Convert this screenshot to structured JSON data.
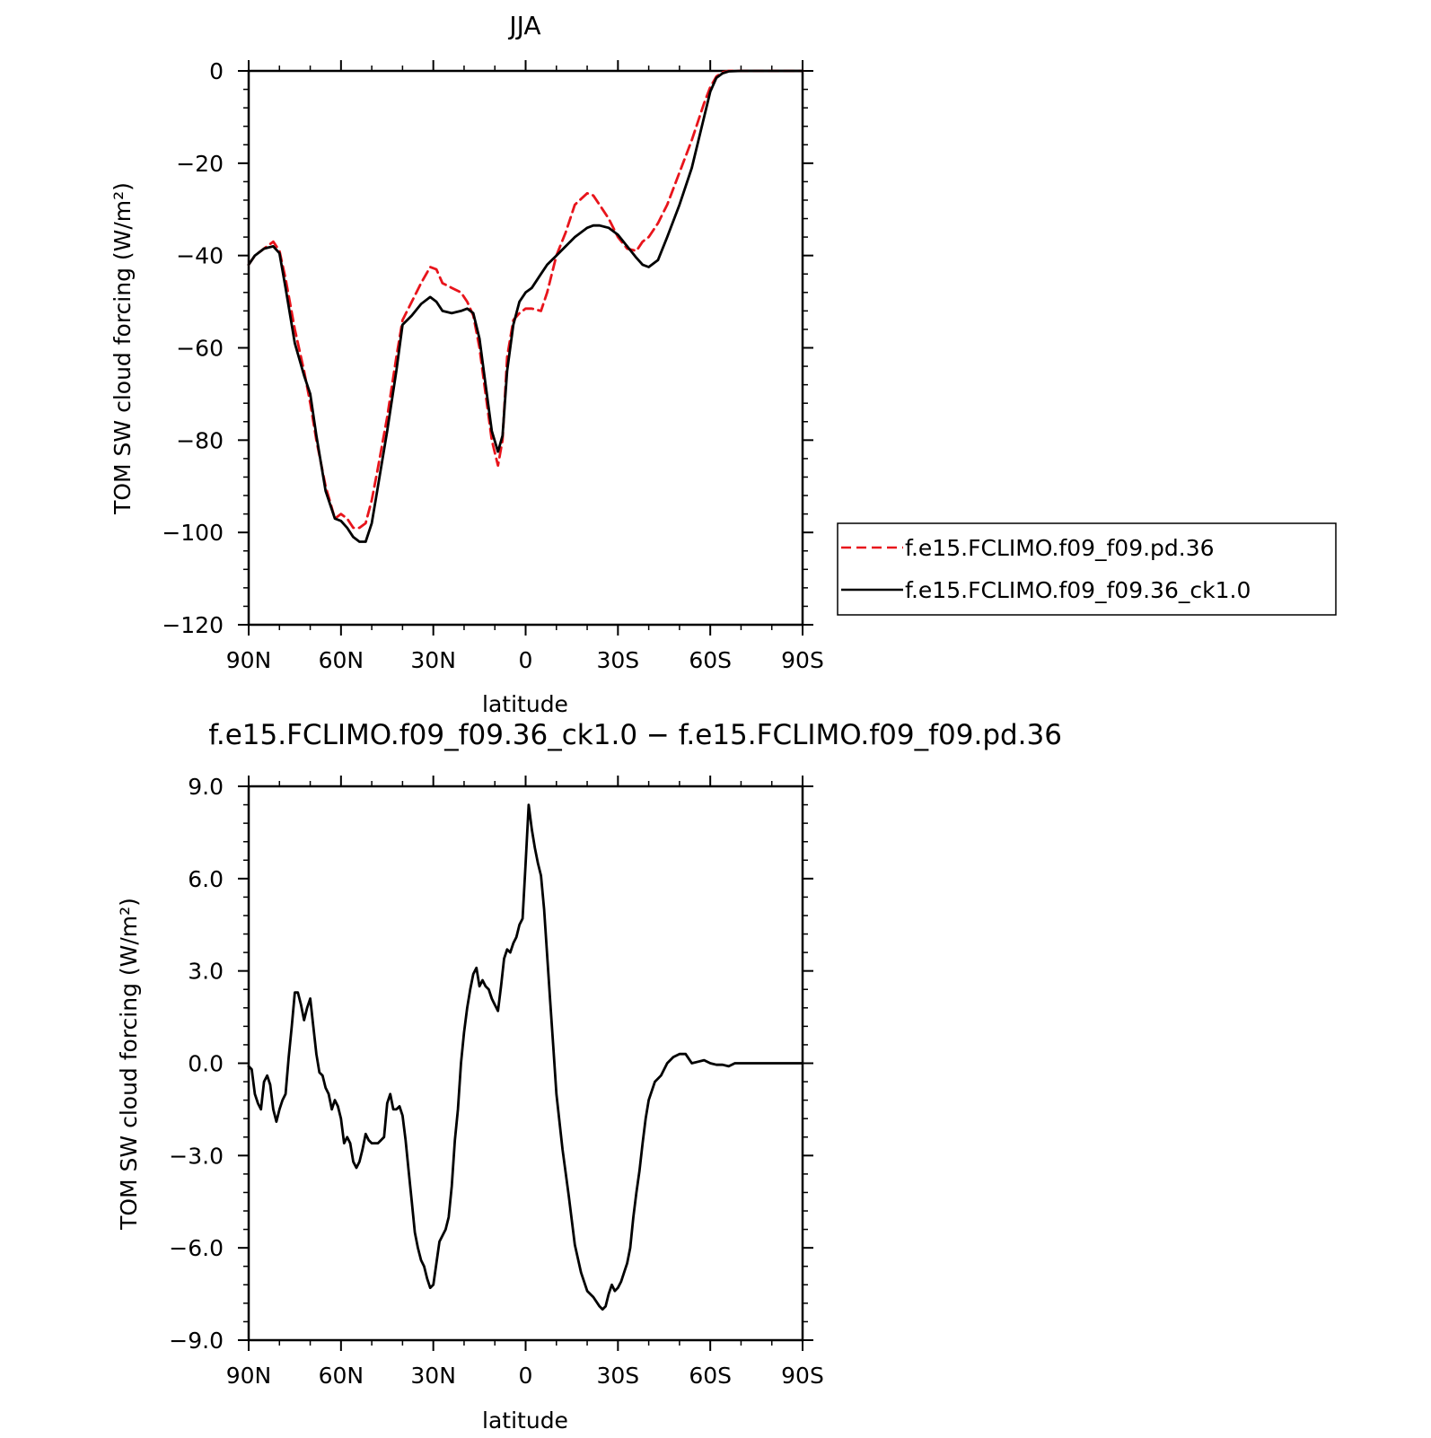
{
  "chart_data": [
    {
      "type": "line",
      "title": "JJA",
      "xlabel": "latitude",
      "ylabel": "TOM SW cloud forcing (W/m²)",
      "ylim": [
        -120,
        0
      ],
      "xlim": [
        90,
        -90
      ],
      "x_ticks": [
        90,
        60,
        30,
        0,
        -30,
        -60,
        -90
      ],
      "x_tick_labels": [
        "90N",
        "60N",
        "30N",
        "0",
        "30S",
        "60S",
        "90S"
      ],
      "y_ticks": [
        0,
        -20,
        -40,
        -60,
        -80,
        -100,
        -120
      ],
      "y_tick_labels": [
        "0",
        "−20",
        "−40",
        "−60",
        "−80",
        "−100",
        "−120"
      ],
      "legend_position": "right",
      "series": [
        {
          "name": "f.e15.FCLIMO.f09_f09.pd.36",
          "color": "#e8141b",
          "dash": "dashed",
          "x": [
            90,
            88,
            85,
            82,
            80,
            78,
            75,
            72,
            70,
            68,
            65,
            62,
            60,
            58,
            56,
            54,
            52,
            50,
            48,
            45,
            42,
            40,
            37,
            34,
            31,
            29,
            27,
            24,
            21,
            19,
            17,
            15,
            13,
            11,
            9,
            7.5,
            6,
            4,
            2,
            0,
            -2,
            -5,
            -7,
            -10,
            -13,
            -16,
            -20,
            -22,
            -24,
            -27,
            -30,
            -33,
            -36,
            -38,
            -40,
            -43,
            -46,
            -50,
            -54,
            -58,
            -60,
            -62,
            -64,
            -66,
            -70,
            -75,
            -80,
            -90
          ],
          "y": [
            -42,
            -40,
            -38.5,
            -37,
            -39,
            -45,
            -56,
            -65,
            -72,
            -80,
            -90,
            -97,
            -96,
            -97,
            -99,
            -99,
            -98,
            -93,
            -86,
            -75,
            -62,
            -54,
            -50,
            -46,
            -42.5,
            -43,
            -46,
            -47,
            -48,
            -50,
            -53,
            -60,
            -70,
            -80,
            -85.5,
            -80,
            -62,
            -54,
            -52.5,
            -51.5,
            -51.5,
            -52,
            -48,
            -40,
            -35,
            -29,
            -26.5,
            -27,
            -29,
            -32,
            -36,
            -38.5,
            -39,
            -37,
            -36,
            -33,
            -29,
            -22,
            -15,
            -7,
            -3.5,
            -1.2,
            -0.3,
            0,
            0,
            0,
            0,
            0
          ]
        },
        {
          "name": "f.e15.FCLIMO.f09_f09.36_ck1.0",
          "color": "#000000",
          "dash": "solid",
          "x": [
            90,
            88,
            85,
            82,
            80,
            78,
            75,
            72,
            70,
            68,
            65,
            62,
            60,
            58,
            56,
            54,
            52,
            50,
            48,
            45,
            42,
            40,
            37,
            34,
            31,
            29,
            27,
            24,
            21,
            19,
            17,
            15,
            13,
            11,
            9,
            7.5,
            6,
            4,
            2,
            0,
            -2,
            -5,
            -7,
            -10,
            -13,
            -16,
            -20,
            -22,
            -24,
            -27,
            -30,
            -33,
            -36,
            -38,
            -40,
            -43,
            -46,
            -50,
            -54,
            -58,
            -60,
            -62,
            -64,
            -66,
            -70,
            -75,
            -80,
            -90
          ],
          "y": [
            -42,
            -40,
            -38.5,
            -38,
            -39.5,
            -47,
            -59,
            -66,
            -70,
            -79,
            -91,
            -97,
            -97.5,
            -99,
            -101,
            -102,
            -102,
            -98,
            -90,
            -78,
            -65,
            -55,
            -53,
            -50.5,
            -49,
            -50,
            -52,
            -52.5,
            -52,
            -51.5,
            -52.5,
            -58,
            -68,
            -78,
            -82.5,
            -79,
            -65,
            -55,
            -50,
            -48,
            -47,
            -44,
            -42,
            -40,
            -38,
            -36,
            -34,
            -33.5,
            -33.5,
            -34,
            -35.5,
            -38,
            -40.5,
            -42,
            -42.5,
            -41,
            -36,
            -29,
            -21,
            -10,
            -4.5,
            -1.5,
            -0.5,
            -0.1,
            0,
            0,
            0,
            0
          ]
        }
      ]
    },
    {
      "type": "line",
      "title": "f.e15.FCLIMO.f09_f09.36_ck1.0 − f.e15.FCLIMO.f09_f09.pd.36",
      "xlabel": "latitude",
      "ylabel": "TOM SW cloud forcing (W/m²)",
      "ylim": [
        -9,
        9
      ],
      "xlim": [
        90,
        -90
      ],
      "x_ticks": [
        90,
        60,
        30,
        0,
        -30,
        -60,
        -90
      ],
      "x_tick_labels": [
        "90N",
        "60N",
        "30N",
        "0",
        "30S",
        "60S",
        "90S"
      ],
      "y_ticks": [
        9,
        6,
        3,
        0,
        -3,
        -6,
        -9
      ],
      "y_tick_labels": [
        "9.0",
        "6.0",
        "3.0",
        "0.0",
        "−3.0",
        "−6.0",
        "−9.0"
      ],
      "series": [
        {
          "color": "#000000",
          "dash": "solid",
          "x": [
            90,
            89,
            88,
            87,
            86,
            85,
            84,
            83,
            82,
            81,
            80,
            79,
            78,
            77,
            76,
            75,
            74,
            73,
            72,
            71,
            70,
            69,
            68,
            67,
            66,
            65,
            64,
            63,
            62,
            61,
            60,
            59,
            58,
            57,
            56,
            55,
            54,
            53,
            52,
            51,
            50,
            49,
            48,
            47,
            46,
            45,
            44,
            43,
            42,
            41,
            40,
            39,
            38,
            37,
            36,
            35,
            34,
            33,
            32,
            31,
            30,
            29,
            28,
            27,
            26,
            25,
            24,
            23,
            22,
            21,
            20,
            19,
            18,
            17,
            16,
            15,
            14,
            13,
            12,
            11,
            10,
            9,
            8,
            7,
            6,
            5,
            4,
            3,
            2,
            1,
            0,
            -1,
            -2,
            -3,
            -4,
            -5,
            -6,
            -7,
            -8,
            -9,
            -10,
            -12,
            -14,
            -16,
            -18,
            -20,
            -22,
            -24,
            -25,
            -26,
            -27,
            -28,
            -29,
            -30,
            -31,
            -32,
            -33,
            -34,
            -35,
            -36,
            -37,
            -38,
            -39,
            -40,
            -42,
            -44,
            -46,
            -48,
            -50,
            -52,
            -54,
            -56,
            -58,
            -60,
            -62,
            -64,
            -66,
            -68,
            -70,
            -75,
            -80,
            -85,
            -90
          ],
          "y": [
            -0.1,
            -0.2,
            -1.0,
            -1.3,
            -1.5,
            -0.6,
            -0.4,
            -0.7,
            -1.5,
            -1.9,
            -1.5,
            -1.2,
            -1.0,
            0.2,
            1.2,
            2.3,
            2.3,
            1.9,
            1.4,
            1.8,
            2.1,
            1.2,
            0.3,
            -0.3,
            -0.4,
            -0.8,
            -1.0,
            -1.5,
            -1.2,
            -1.4,
            -1.8,
            -2.6,
            -2.4,
            -2.6,
            -3.2,
            -3.4,
            -3.2,
            -2.8,
            -2.3,
            -2.5,
            -2.6,
            -2.6,
            -2.6,
            -2.5,
            -2.4,
            -1.3,
            -1.0,
            -1.5,
            -1.5,
            -1.4,
            -1.7,
            -2.5,
            -3.5,
            -4.5,
            -5.5,
            -6.0,
            -6.4,
            -6.6,
            -7.0,
            -7.3,
            -7.2,
            -6.5,
            -5.8,
            -5.6,
            -5.4,
            -5.0,
            -4.0,
            -2.5,
            -1.5,
            0.0,
            1.0,
            1.8,
            2.4,
            2.9,
            3.1,
            2.5,
            2.7,
            2.5,
            2.4,
            2.1,
            1.9,
            1.7,
            2.5,
            3.4,
            3.7,
            3.6,
            3.9,
            4.1,
            4.5,
            4.7,
            6.5,
            8.4,
            7.6,
            7.0,
            6.5,
            6.1,
            5.0,
            3.5,
            2.0,
            0.5,
            -1.0,
            -2.8,
            -4.3,
            -5.9,
            -6.8,
            -7.4,
            -7.6,
            -7.9,
            -8.0,
            -7.9,
            -7.5,
            -7.2,
            -7.4,
            -7.3,
            -7.1,
            -6.8,
            -6.5,
            -6.0,
            -5.0,
            -4.2,
            -3.5,
            -2.6,
            -1.8,
            -1.2,
            -0.6,
            -0.4,
            0.0,
            0.2,
            0.3,
            0.3,
            0.0,
            0.05,
            0.1,
            0.0,
            -0.05,
            -0.05,
            -0.1,
            0.0,
            0.0,
            0.0,
            0.0,
            0.0,
            0.0
          ]
        }
      ]
    }
  ]
}
